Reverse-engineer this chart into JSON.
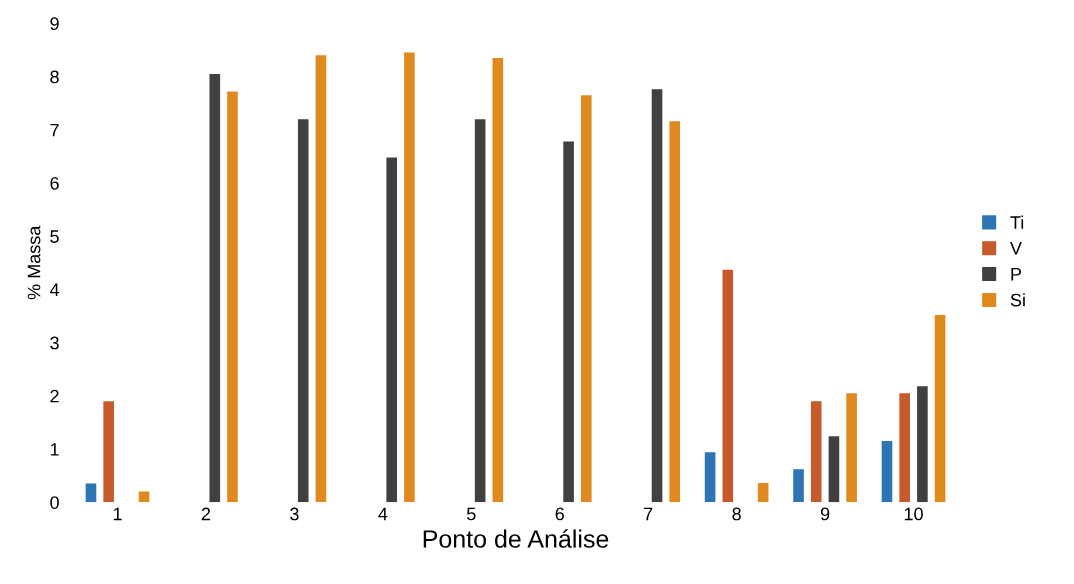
{
  "chart_data": {
    "type": "bar",
    "xlabel": "Ponto de Análise",
    "ylabel": "% Massa",
    "categories": [
      "1",
      "2",
      "3",
      "4",
      "5",
      "6",
      "7",
      "8",
      "9",
      "10"
    ],
    "series": [
      {
        "name": "Ti",
        "color": "#2e75b6",
        "values": [
          0.35,
          null,
          null,
          null,
          null,
          null,
          null,
          0.94,
          0.62,
          1.15
        ]
      },
      {
        "name": "V",
        "color": "#c55a2b",
        "values": [
          1.9,
          null,
          null,
          null,
          null,
          null,
          null,
          4.37,
          1.9,
          2.05
        ]
      },
      {
        "name": "P",
        "color": "#404040",
        "values": [
          null,
          8.05,
          7.2,
          6.48,
          7.2,
          6.78,
          7.76,
          null,
          1.24,
          2.18
        ]
      },
      {
        "name": "Si",
        "color": "#e08a1e",
        "values": [
          0.2,
          7.72,
          8.4,
          8.45,
          8.35,
          7.65,
          7.16,
          0.36,
          2.05,
          3.52
        ]
      }
    ],
    "ylim": [
      0,
      9
    ],
    "yticks": [
      0,
      1,
      2,
      3,
      4,
      5,
      6,
      7,
      8,
      9
    ],
    "grid": false,
    "legend": "right"
  }
}
